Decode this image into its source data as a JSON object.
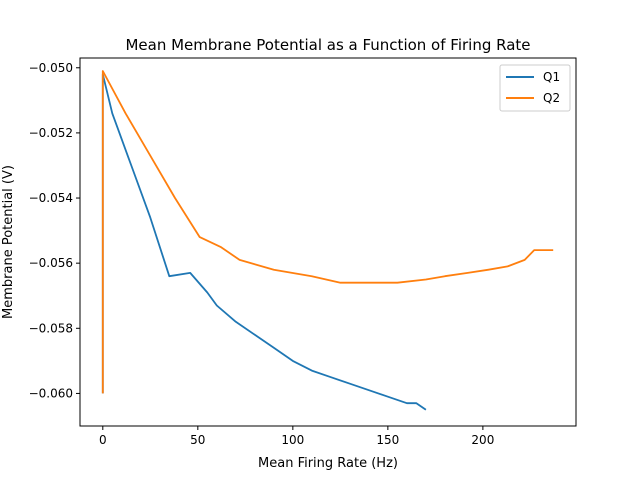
{
  "chart_data": {
    "type": "line",
    "title": "Mean Membrane Potential as a Function of Firing Rate",
    "xlabel": "Mean Firing Rate (Hz)",
    "ylabel": "Membrane Potential (V)",
    "xlim": [
      -12,
      249
    ],
    "ylim": [
      -0.061,
      -0.0497
    ],
    "xticks": [
      0,
      50,
      100,
      150,
      200
    ],
    "xtick_labels": [
      "0",
      "50",
      "100",
      "150",
      "200"
    ],
    "yticks": [
      -0.06,
      -0.058,
      -0.056,
      -0.054,
      -0.052,
      -0.05
    ],
    "ytick_labels": [
      "−0.060",
      "−0.058",
      "−0.056",
      "−0.054",
      "−0.052",
      "−0.050"
    ],
    "grid": false,
    "legend": "top-right",
    "series": [
      {
        "name": "Q1",
        "color": "#1f77b4",
        "x": [
          0,
          0,
          0,
          0,
          5,
          15,
          25,
          35,
          46,
          55,
          60,
          70,
          80,
          90,
          100,
          110,
          120,
          130,
          140,
          150,
          160,
          165,
          170
        ],
        "y": [
          -0.06,
          -0.058,
          -0.054,
          -0.0502,
          -0.0514,
          -0.053,
          -0.0546,
          -0.0564,
          -0.0563,
          -0.0569,
          -0.0573,
          -0.0578,
          -0.0582,
          -0.0586,
          -0.059,
          -0.0593,
          -0.0595,
          -0.0597,
          -0.0599,
          -0.0601,
          -0.0603,
          -0.0603,
          -0.0605
        ]
      },
      {
        "name": "Q2",
        "color": "#ff7f0e",
        "x": [
          0,
          0,
          0,
          0,
          12,
          25,
          38,
          51,
          62,
          72,
          90,
          110,
          125,
          140,
          155,
          170,
          180,
          192,
          203,
          213,
          222,
          227,
          237
        ],
        "y": [
          -0.06,
          -0.057,
          -0.053,
          -0.0501,
          -0.0514,
          -0.0527,
          -0.054,
          -0.0552,
          -0.0555,
          -0.0559,
          -0.0562,
          -0.0564,
          -0.0566,
          -0.0566,
          -0.0566,
          -0.0565,
          -0.0564,
          -0.0563,
          -0.0562,
          -0.0561,
          -0.0559,
          -0.0556,
          -0.0556
        ]
      }
    ]
  }
}
